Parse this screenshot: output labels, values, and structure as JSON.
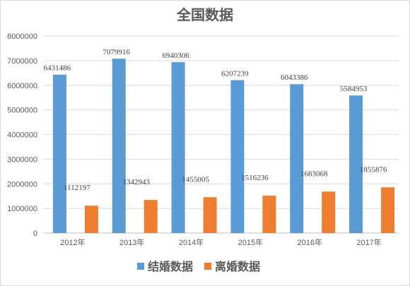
{
  "chart_data": {
    "type": "bar",
    "title": "全国数据",
    "categories": [
      "2012年",
      "2013年",
      "2014年",
      "2015年",
      "2016年",
      "2017年"
    ],
    "series": [
      {
        "name": "结婚数据",
        "color": "#5b9bd5",
        "values": [
          6431486,
          7079916,
          6940306,
          6207239,
          6043386,
          5584953
        ]
      },
      {
        "name": "离婚数据",
        "color": "#ed7d31",
        "values": [
          1112197,
          1342943,
          1455005,
          1516236,
          1683068,
          1855876
        ]
      }
    ],
    "ylim": [
      0,
      8000000
    ],
    "yticks": [
      "0",
      "1000000",
      "2000000",
      "3000000",
      "4000000",
      "5000000",
      "6000000",
      "7000000",
      "8000000"
    ],
    "grid": true,
    "legend_position": "bottom"
  }
}
